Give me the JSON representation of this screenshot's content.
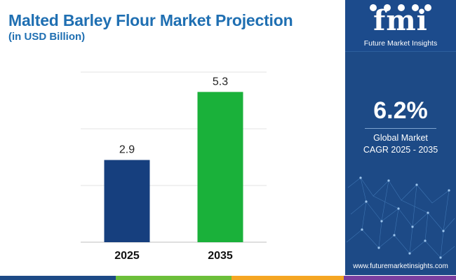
{
  "header": {
    "title": "Malted Barley Flour Market Projection",
    "subtitle": "(in USD Billion)"
  },
  "chart_data": {
    "type": "bar",
    "categories": [
      "2025",
      "2035"
    ],
    "values": [
      2.9,
      5.3
    ],
    "value_labels": [
      "2.9",
      "5.3"
    ],
    "bar_colors": [
      "#163f7e",
      "#1ab13a"
    ],
    "ylim": [
      0,
      6
    ],
    "grid": true
  },
  "sidebar": {
    "logo_text": "fmi",
    "logo_tagline": "Future Market Insights",
    "cagr_value": "6.2%",
    "cagr_label_line1": "Global Market",
    "cagr_label_line2": "CAGR 2025 - 2035",
    "website": "www.futuremarketinsights.com"
  },
  "colors": {
    "title": "#1f6fb2",
    "sidebar_bg": "#1d4a86",
    "strip": [
      "#1d4a86",
      "#6cbf3a",
      "#f5a623",
      "#7b3fa0"
    ]
  }
}
